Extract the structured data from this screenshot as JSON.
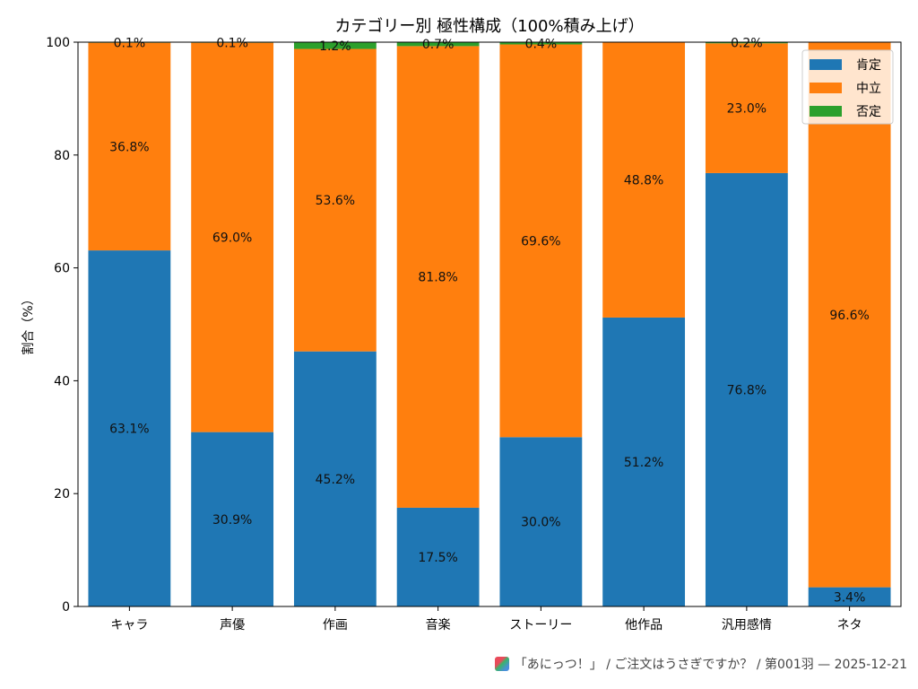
{
  "chart_data": {
    "type": "bar",
    "stacked": true,
    "normalized_100": true,
    "title": "カテゴリー別 極性構成（100%積み上げ）",
    "xlabel": "",
    "ylabel": "割合（%）",
    "ylim": [
      0,
      100
    ],
    "yticks": [
      0,
      20,
      40,
      60,
      80,
      100
    ],
    "grid": false,
    "legend_position": "top-right",
    "categories": [
      "キャラ",
      "声優",
      "作画",
      "音楽",
      "ストーリー",
      "他作品",
      "汎用感情",
      "ネタ"
    ],
    "series": [
      {
        "name": "肯定",
        "color": "#1f77b4",
        "values": [
          63.1,
          30.9,
          45.2,
          17.5,
          30.0,
          51.2,
          76.8,
          3.4
        ]
      },
      {
        "name": "中立",
        "color": "#ff7f0e",
        "values": [
          36.8,
          69.0,
          53.6,
          81.8,
          69.6,
          48.8,
          23.0,
          96.6
        ]
      },
      {
        "name": "否定",
        "color": "#2ca02c",
        "values": [
          0.1,
          0.1,
          1.2,
          0.7,
          0.4,
          0.0,
          0.2,
          0.0
        ]
      }
    ],
    "data_labels": [
      [
        "63.1%",
        "30.9%",
        "45.2%",
        "17.5%",
        "30.0%",
        "51.2%",
        "76.8%",
        "3.4%"
      ],
      [
        "36.8%",
        "69.0%",
        "53.6%",
        "81.8%",
        "69.6%",
        "48.8%",
        "23.0%",
        "96.6%"
      ],
      [
        "0.1%",
        "0.1%",
        "1.2%",
        "0.7%",
        "0.4%",
        "",
        "0.2%",
        ""
      ]
    ]
  },
  "footer": {
    "icon": "app-logo-icon",
    "text": "「あにっつ！」 / ご注文はうさぎですか？ / 第001羽 — 2025-12-21"
  }
}
